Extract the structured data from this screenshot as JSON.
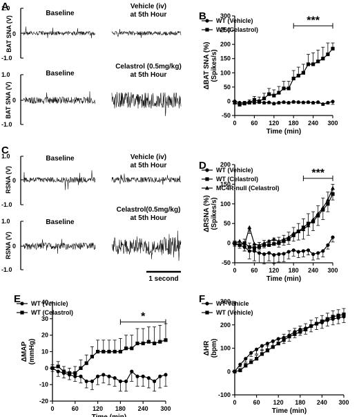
{
  "panels": {
    "A": {
      "letter": "A",
      "ylabel": "BAT SNA (V)",
      "row1": {
        "left_title": "Baseline",
        "right_title_1": "Vehicle (iv)",
        "right_title_2": "at 5th Hour"
      },
      "row2": {
        "left_title": "Baseline",
        "right_title_1": "Celastrol (0.5mg/kg)",
        "right_title_2": "at 5th Hour"
      },
      "yticks": [
        "1.0",
        "0",
        "-1.0"
      ]
    },
    "C": {
      "letter": "C",
      "ylabel": "RSNA (V)",
      "row1": {
        "left_title": "Baseline",
        "right_title_1": "Vehicle (iv)",
        "right_title_2": "at 5th Hour"
      },
      "row2": {
        "left_title": "Baseline",
        "right_title_1": "Celastrol(0.5mg/kg)",
        "right_title_2": "at 5th Hour"
      },
      "yticks": [
        "1.0",
        "0",
        "-1.0"
      ],
      "scalebar": "1 second"
    }
  },
  "chart_data": [
    {
      "id": "B",
      "letter": "B",
      "type": "line",
      "xlabel": "Time (min)",
      "ylabel1": "ΔBAT SNA (%)",
      "ylabel2": "(Spikes/s)",
      "xlim": [
        0,
        300
      ],
      "ylim": [
        -50,
        300
      ],
      "xticks": [
        0,
        60,
        120,
        180,
        240,
        300
      ],
      "yticks": [
        -50,
        0,
        50,
        100,
        150,
        200,
        250,
        300
      ],
      "significance": {
        "label": "***",
        "x_from": 180,
        "x_to": 300,
        "y": 265
      },
      "series": [
        {
          "name": "WT (Vehicle)",
          "marker": "circle",
          "x": [
            0,
            15,
            30,
            45,
            60,
            75,
            90,
            105,
            120,
            135,
            150,
            165,
            180,
            195,
            210,
            225,
            240,
            255,
            270,
            285,
            300
          ],
          "y": [
            0,
            -5,
            -6,
            -3,
            -5,
            -3,
            -5,
            -4,
            -8,
            -5,
            -3,
            -5,
            -2,
            -3,
            -4,
            -3,
            -5,
            -3,
            -10,
            -5,
            -1
          ],
          "err": [
            5,
            5,
            5,
            5,
            5,
            5,
            5,
            5,
            5,
            5,
            5,
            5,
            5,
            5,
            5,
            5,
            5,
            5,
            5,
            5,
            10
          ]
        },
        {
          "name": "WT (Celastrol)",
          "marker": "square",
          "x": [
            0,
            15,
            30,
            45,
            60,
            75,
            90,
            105,
            120,
            135,
            150,
            165,
            180,
            195,
            210,
            225,
            240,
            255,
            270,
            285,
            300
          ],
          "y": [
            -5,
            -12,
            -8,
            -5,
            5,
            0,
            10,
            25,
            20,
            30,
            45,
            45,
            80,
            90,
            100,
            130,
            130,
            140,
            150,
            165,
            185
          ],
          "err": [
            5,
            8,
            8,
            10,
            12,
            15,
            18,
            20,
            20,
            22,
            25,
            25,
            28,
            30,
            30,
            35,
            40,
            40,
            40,
            40,
            20
          ]
        }
      ]
    },
    {
      "id": "D",
      "letter": "D",
      "type": "line",
      "xlabel": "Time (min)",
      "ylabel1": "ΔRSNA (%)",
      "ylabel2": "(Spikes/s)",
      "xlim": [
        0,
        300
      ],
      "ylim": [
        -50,
        200
      ],
      "xticks": [
        0,
        60,
        120,
        180,
        240,
        300
      ],
      "yticks": [
        -50,
        0,
        50,
        100,
        150,
        200
      ],
      "significance": {
        "label": "***",
        "x_from": 210,
        "x_to": 300,
        "y": 165
      },
      "series": [
        {
          "name": "WT (Vehicle)",
          "marker": "circle",
          "x": [
            0,
            15,
            30,
            45,
            60,
            75,
            90,
            105,
            120,
            135,
            150,
            165,
            180,
            195,
            210,
            225,
            240,
            255,
            270,
            285,
            300
          ],
          "y": [
            -2,
            -5,
            -10,
            -20,
            -20,
            -25,
            -28,
            -25,
            -30,
            -28,
            -27,
            -22,
            -18,
            -22,
            -20,
            -18,
            -28,
            -25,
            -20,
            -5,
            15
          ],
          "err": [
            6,
            8,
            10,
            20,
            25,
            25,
            25,
            20,
            22,
            20,
            20,
            18,
            15,
            15,
            15,
            12,
            15,
            15,
            15,
            10,
            12
          ]
        },
        {
          "name": "WT (Celastrol)",
          "marker": "square",
          "x": [
            0,
            15,
            30,
            45,
            60,
            75,
            90,
            105,
            120,
            135,
            150,
            165,
            180,
            195,
            210,
            225,
            240,
            255,
            270,
            285,
            300
          ],
          "y": [
            0,
            -5,
            0,
            -10,
            -12,
            -10,
            -5,
            -5,
            -2,
            0,
            5,
            10,
            20,
            30,
            40,
            50,
            55,
            70,
            85,
            100,
            125
          ],
          "err": [
            6,
            8,
            10,
            10,
            10,
            12,
            12,
            12,
            15,
            15,
            15,
            18,
            20,
            20,
            22,
            25,
            25,
            25,
            30,
            30,
            25
          ]
        },
        {
          "name": "MC4R-null (Celastrol)",
          "marker": "triangle",
          "x": [
            0,
            15,
            30,
            45,
            60,
            75,
            90,
            105,
            120,
            135,
            150,
            165,
            180,
            195,
            210,
            225,
            240,
            255,
            270,
            285,
            300
          ],
          "y": [
            0,
            5,
            -5,
            40,
            -2,
            -5,
            0,
            5,
            10,
            5,
            10,
            15,
            25,
            30,
            35,
            45,
            60,
            75,
            90,
            110,
            140
          ],
          "err": [
            5,
            10,
            15,
            15,
            10,
            12,
            12,
            12,
            15,
            15,
            15,
            18,
            20,
            22,
            25,
            25,
            28,
            30,
            30,
            30,
            30
          ]
        }
      ]
    },
    {
      "id": "E",
      "letter": "E",
      "type": "line",
      "xlabel": "Time (min)",
      "ylabel1": "ΔMAP",
      "ylabel2": "(mmHg)",
      "xlim": [
        0,
        300
      ],
      "ylim": [
        -20,
        40
      ],
      "xticks": [
        0,
        60,
        120,
        180,
        240,
        300
      ],
      "yticks": [
        -20,
        -10,
        0,
        10,
        20,
        30,
        40
      ],
      "significance": {
        "label": "*",
        "x_from": 180,
        "x_to": 300,
        "y": 28
      },
      "series": [
        {
          "name": "WT (Vehicle)",
          "marker": "circle",
          "x": [
            0,
            15,
            30,
            45,
            60,
            75,
            90,
            105,
            120,
            135,
            150,
            165,
            180,
            195,
            210,
            225,
            240,
            255,
            270,
            285,
            300
          ],
          "y": [
            0,
            -2,
            -3,
            -4,
            -5,
            -5,
            -8,
            -8,
            -5,
            -4,
            -5,
            -6,
            -8,
            -8,
            -2,
            -5,
            -5,
            -6,
            -8,
            -5,
            -4
          ],
          "err": [
            2,
            3,
            3,
            3,
            3,
            4,
            4,
            5,
            5,
            5,
            5,
            5,
            6,
            6,
            6,
            6,
            6,
            6,
            6,
            7,
            7
          ]
        },
        {
          "name": "WT (Celastrol)",
          "marker": "square",
          "x": [
            0,
            15,
            30,
            45,
            60,
            75,
            90,
            105,
            120,
            135,
            150,
            165,
            180,
            195,
            210,
            225,
            240,
            255,
            270,
            285,
            300
          ],
          "y": [
            0,
            1,
            -2,
            -3,
            -3,
            0,
            3,
            7,
            10,
            10,
            10,
            10,
            10,
            12,
            12,
            15,
            15,
            16,
            15,
            16,
            17
          ],
          "err": [
            2,
            3,
            3,
            3,
            4,
            5,
            5,
            6,
            7,
            7,
            7,
            7,
            8,
            8,
            8,
            9,
            9,
            9,
            10,
            10,
            10
          ]
        }
      ]
    },
    {
      "id": "F",
      "letter": "F",
      "type": "line",
      "xlabel": "Time (min)",
      "ylabel1": "ΔHR",
      "ylabel2": "(bpm)",
      "xlim": [
        0,
        300
      ],
      "ylim": [
        -100,
        300
      ],
      "xticks": [
        0,
        60,
        120,
        180,
        240,
        300
      ],
      "yticks": [
        -100,
        0,
        100,
        200,
        300
      ],
      "significance": null,
      "series": [
        {
          "name": "WT-Vehicle",
          "marker": "circle",
          "x": [
            0,
            15,
            30,
            45,
            60,
            75,
            90,
            105,
            120,
            135,
            150,
            165,
            180,
            195,
            210,
            225,
            240,
            255,
            270,
            285,
            300
          ],
          "y": [
            0,
            30,
            55,
            80,
            95,
            110,
            120,
            130,
            140,
            145,
            155,
            170,
            180,
            185,
            195,
            205,
            210,
            220,
            225,
            230,
            235
          ],
          "err": [
            5,
            10,
            15,
            15,
            20,
            20,
            22,
            22,
            25,
            25,
            25,
            25,
            25,
            25,
            25,
            25,
            25,
            25,
            25,
            25,
            25
          ]
        },
        {
          "name": "WT (Vehicle)",
          "marker": "square",
          "x": [
            0,
            15,
            30,
            45,
            60,
            75,
            90,
            105,
            120,
            135,
            150,
            165,
            180,
            195,
            210,
            225,
            240,
            255,
            270,
            285,
            300
          ],
          "y": [
            0,
            5,
            25,
            40,
            55,
            75,
            90,
            105,
            120,
            135,
            150,
            160,
            170,
            180,
            195,
            205,
            215,
            225,
            235,
            240,
            245
          ],
          "err": [
            5,
            8,
            10,
            12,
            15,
            18,
            20,
            22,
            22,
            25,
            25,
            25,
            25,
            25,
            25,
            25,
            25,
            25,
            25,
            25,
            25
          ]
        }
      ]
    }
  ]
}
